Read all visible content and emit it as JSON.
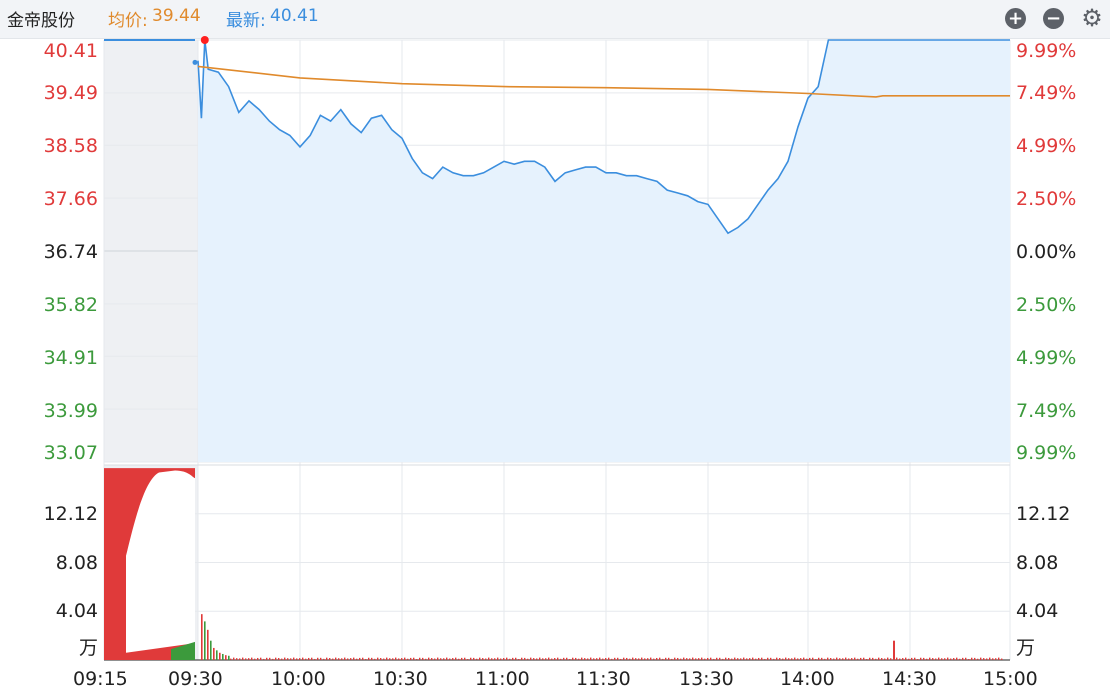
{
  "header": {
    "stock_name": "金帝股份",
    "avg_label": "均价:",
    "avg_value": "39.44",
    "last_label": "最新:",
    "last_value": "40.41",
    "zoom_in_icon": "plus-circle-icon",
    "zoom_out_icon": "minus-circle-icon",
    "settings_icon": "gear-icon"
  },
  "colors": {
    "price_line": "#3b8ede",
    "avg_line": "#e08a2c",
    "up": "#e03a3a",
    "down": "#3c9a3c",
    "area_fill": "#e6f2fd",
    "auction_bg": "#eef0f3",
    "grid": "#e6e9ed"
  },
  "chart_data": {
    "type": "line",
    "title": "",
    "price_axis_left": [
      "40.41",
      "39.49",
      "38.58",
      "37.66",
      "36.74",
      "35.82",
      "34.91",
      "33.99",
      "33.07"
    ],
    "price_axis_right": [
      "9.99%",
      "7.49%",
      "4.99%",
      "2.50%",
      "0.00%",
      "2.50%",
      "4.99%",
      "7.49%",
      "9.99%"
    ],
    "prev_close": 36.74,
    "ylim": [
      33.07,
      40.41
    ],
    "volume_axis_left": [
      "12.12",
      "8.08",
      "4.04",
      "万"
    ],
    "volume_axis_right": [
      "12.12",
      "8.08",
      "4.04",
      "万"
    ],
    "volume_ylim": [
      0,
      16.16
    ],
    "x_ticks": [
      "09:15",
      "09:30",
      "10:00",
      "10:30",
      "11:00",
      "11:30",
      "13:30",
      "14:00",
      "14:30",
      "15:00"
    ],
    "grid": true,
    "series": [
      {
        "x": [
          "09:30",
          "09:31",
          "09:32",
          "09:33",
          "09:36",
          "09:39",
          "09:42",
          "09:45",
          "09:48",
          "09:51",
          "09:54",
          "09:57",
          "10:00",
          "10:03",
          "10:06",
          "10:09",
          "10:12",
          "10:15",
          "10:18",
          "10:21",
          "10:24",
          "10:27",
          "10:30",
          "10:33",
          "10:36",
          "10:39",
          "10:42",
          "10:45",
          "10:48",
          "10:51",
          "10:54",
          "10:57",
          "11:00",
          "11:03",
          "11:06",
          "11:09",
          "11:12",
          "11:15",
          "11:18",
          "11:21",
          "11:24",
          "11:27",
          "11:30",
          "13:03",
          "13:06",
          "13:09",
          "13:12",
          "13:15",
          "13:18",
          "13:21",
          "13:24",
          "13:27",
          "13:30",
          "13:33",
          "13:36",
          "13:39",
          "13:42",
          "13:45",
          "13:48",
          "13:51",
          "13:54",
          "13:57",
          "14:00",
          "14:03",
          "14:06",
          "14:09",
          "14:12",
          "14:15",
          "14:18",
          "14:21",
          "14:24",
          "14:25",
          "14:27",
          "14:30",
          "14:40",
          "14:50",
          "15:00"
        ],
        "values": [
          40.05,
          39.05,
          40.41,
          39.9,
          39.85,
          39.6,
          39.15,
          39.35,
          39.2,
          39.0,
          38.85,
          38.75,
          38.55,
          38.75,
          39.1,
          39.0,
          39.2,
          38.95,
          38.8,
          39.05,
          39.1,
          38.85,
          38.7,
          38.35,
          38.1,
          38.0,
          38.2,
          38.1,
          38.05,
          38.05,
          38.1,
          38.2,
          38.3,
          38.25,
          38.3,
          38.3,
          38.2,
          37.95,
          38.1,
          38.15,
          38.2,
          38.2,
          38.1,
          38.1,
          38.05,
          38.05,
          38.0,
          37.95,
          37.8,
          37.75,
          37.7,
          37.6,
          37.55,
          37.3,
          37.05,
          37.15,
          37.3,
          37.55,
          37.8,
          38.0,
          38.3,
          38.9,
          39.4,
          39.6,
          40.41,
          40.41,
          40.41,
          40.41,
          40.41,
          40.41,
          40.41,
          40.41,
          40.41,
          40.41,
          40.41,
          40.41,
          40.41
        ]
      },
      {
        "x": [
          "09:30",
          "10:00",
          "10:30",
          "11:00",
          "11:30",
          "13:30",
          "14:00",
          "14:20",
          "14:22",
          "15:00"
        ],
        "values": [
          39.95,
          39.75,
          39.65,
          39.6,
          39.58,
          39.55,
          39.48,
          39.42,
          39.44,
          39.44
        ]
      }
    ],
    "auction_price_start": 40.41,
    "volume": {
      "auction_buy_level": 15.9,
      "auction_sell_level": 15.7,
      "open_volume_bars": [
        3.8,
        3.2,
        2.5,
        1.6,
        1.0,
        0.8,
        0.6,
        0.5,
        0.4,
        0.35
      ],
      "late_spike": 1.6
    }
  }
}
